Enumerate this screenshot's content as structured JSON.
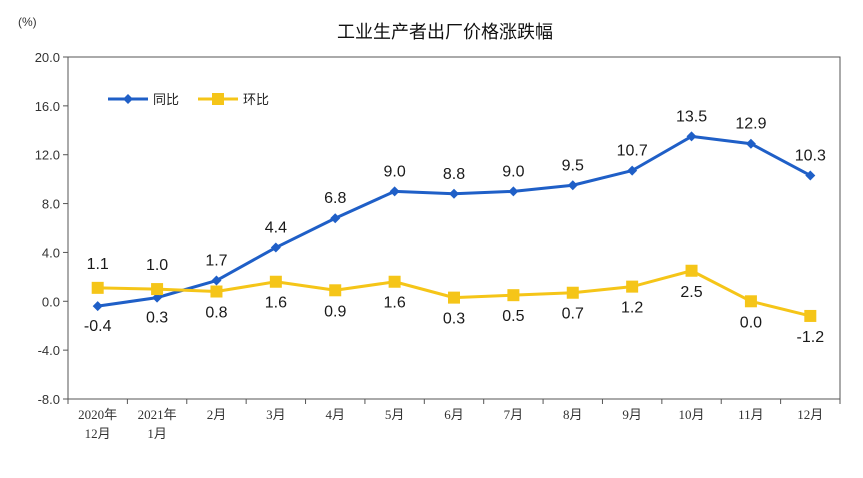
{
  "chart_data": {
    "type": "line",
    "title": "工业生产者出厂价格涨跌幅",
    "unit": "(%)",
    "ylim": [
      -8.0,
      20.0
    ],
    "yticks": [
      "20.0",
      "16.0",
      "12.0",
      "8.0",
      "4.0",
      "0.0",
      "-4.0",
      "-8.0"
    ],
    "ytick_values": [
      20,
      16,
      12,
      8,
      4,
      0,
      -4,
      -8
    ],
    "categories": [
      [
        "2020年",
        "12月"
      ],
      [
        "2021年",
        "1月"
      ],
      [
        "2月"
      ],
      [
        "3月"
      ],
      [
        "4月"
      ],
      [
        "5月"
      ],
      [
        "6月"
      ],
      [
        "7月"
      ],
      [
        "8月"
      ],
      [
        "9月"
      ],
      [
        "10月"
      ],
      [
        "11月"
      ],
      [
        "12月"
      ]
    ],
    "legend_position": "top-left",
    "grid": false,
    "series": [
      {
        "name": "同比",
        "color": "#1f5fc7",
        "marker": "diamond",
        "values": [
          -0.4,
          0.3,
          1.7,
          4.4,
          6.8,
          9.0,
          8.8,
          9.0,
          9.5,
          10.7,
          13.5,
          12.9,
          10.3
        ],
        "labels": [
          "-0.4",
          "0.3",
          "1.7",
          "4.4",
          "6.8",
          "9.0",
          "8.8",
          "9.0",
          "9.5",
          "10.7",
          "13.5",
          "12.9",
          "10.3"
        ]
      },
      {
        "name": "环比",
        "color": "#f5c518",
        "marker": "square",
        "values": [
          1.1,
          1.0,
          0.8,
          1.6,
          0.9,
          1.6,
          0.3,
          0.5,
          0.7,
          1.2,
          2.5,
          0.0,
          -1.2
        ],
        "labels": [
          "1.1",
          "1.0",
          "0.8",
          "1.6",
          "0.9",
          "1.6",
          "0.3",
          "0.5",
          "0.7",
          "1.2",
          "2.5",
          "0.0",
          "-1.2"
        ]
      }
    ]
  }
}
